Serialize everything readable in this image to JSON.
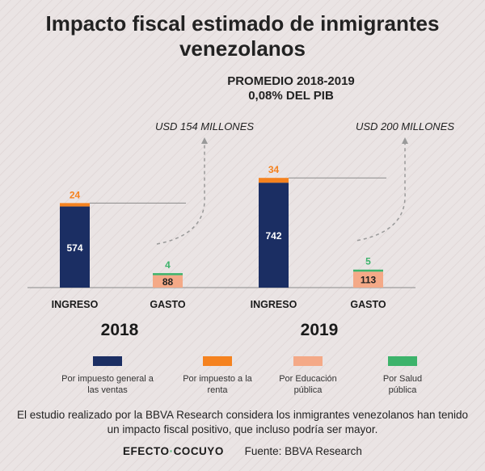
{
  "title": "Impacto fiscal estimado de inmigrantes venezolanos",
  "average": {
    "line1": "PROMEDIO 2018-2019",
    "line2": "0,08% DEL PIB"
  },
  "colors": {
    "ventas": "#1b2e63",
    "renta": "#f5821f",
    "educacion": "#f4a987",
    "salud": "#3db36b",
    "arrow": "#9a9a9a",
    "baseline": "#8a8a8a"
  },
  "chart_data": {
    "type": "bar",
    "stacked": true,
    "groups": [
      {
        "year": "2018",
        "net_label": "USD 154 MILLONES",
        "bars": [
          {
            "label": "INGRESO",
            "segments": [
              {
                "key": "ventas",
                "value": 574,
                "label": "574"
              },
              {
                "key": "renta",
                "value": 24,
                "label": "24"
              }
            ]
          },
          {
            "label": "GASTO",
            "segments": [
              {
                "key": "educacion",
                "value": 88,
                "label": "88"
              },
              {
                "key": "salud",
                "value": 4,
                "label": "4"
              }
            ]
          }
        ]
      },
      {
        "year": "2019",
        "net_label": "USD 200 MILLONES",
        "bars": [
          {
            "label": "INGRESO",
            "segments": [
              {
                "key": "ventas",
                "value": 742,
                "label": "742"
              },
              {
                "key": "renta",
                "value": 34,
                "label": "34"
              }
            ]
          },
          {
            "label": "GASTO",
            "segments": [
              {
                "key": "educacion",
                "value": 113,
                "label": "113"
              },
              {
                "key": "salud",
                "value": 5,
                "label": "5"
              }
            ]
          }
        ]
      }
    ],
    "legend": [
      {
        "key": "ventas",
        "label": "Por impuesto general a las ventas"
      },
      {
        "key": "renta",
        "label": "Por impuesto a la renta"
      },
      {
        "key": "educacion",
        "label": "Por Educación pública"
      },
      {
        "key": "salud",
        "label": "Por Salud pública"
      }
    ]
  },
  "note": "El estudio realizado por la BBVA Research considera los inmigrantes venezolanos han tenido un impacto fiscal positivo, que incluso podría ser mayor.",
  "footer": {
    "brand_left": "EFECTO",
    "brand_sep": "·",
    "brand_right": "COCUYO",
    "source": "Fuente: BBVA Research"
  }
}
